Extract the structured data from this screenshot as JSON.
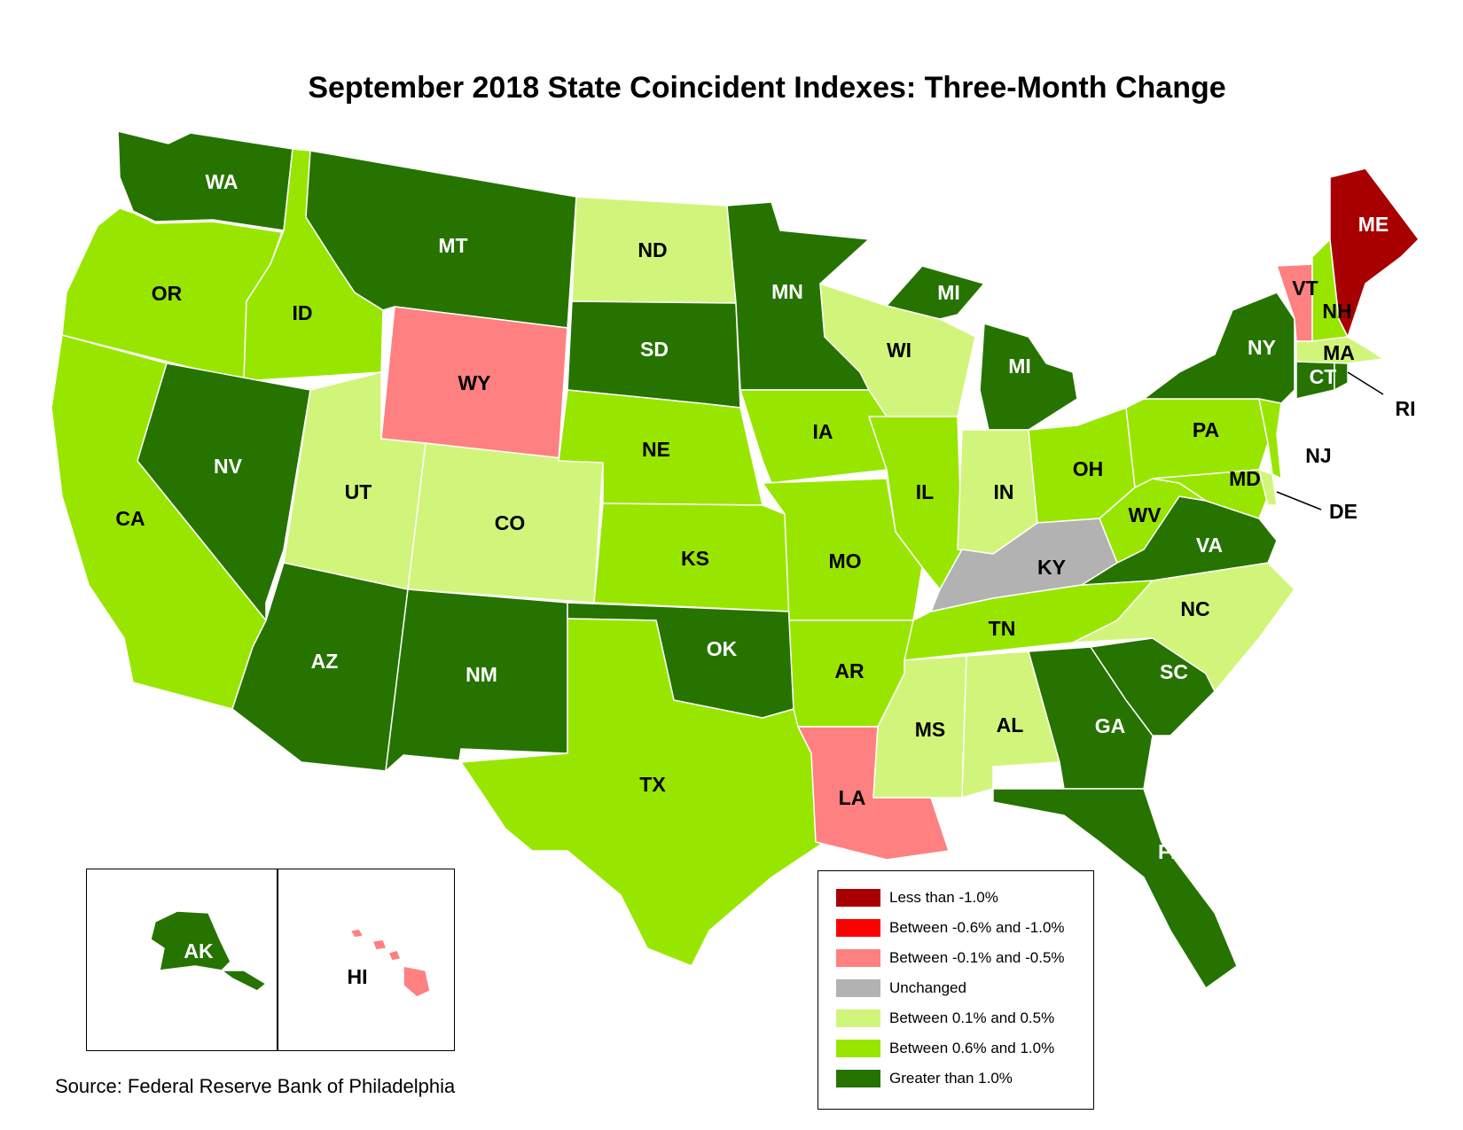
{
  "title": "September 2018 State Coincident Indexes: Three-Month Change",
  "source": "Source: Federal Reserve Bank of Philadelphia",
  "colors": {
    "c1": "#a80000",
    "c2": "#ff0000",
    "c3": "#ff8080",
    "c4": "#b2b2b2",
    "c5": "#d1f57a",
    "c6": "#98e600",
    "c7": "#267300"
  },
  "legend": [
    {
      "key": "c1",
      "label": "Less than -1.0%"
    },
    {
      "key": "c2",
      "label": "Between -0.6% and -1.0%"
    },
    {
      "key": "c3",
      "label": "Between -0.1% and -0.5%"
    },
    {
      "key": "c4",
      "label": "Unchanged"
    },
    {
      "key": "c5",
      "label": "Between 0.1% and 0.5%"
    },
    {
      "key": "c6",
      "label": "Between 0.6% and 1.0%"
    },
    {
      "key": "c7",
      "label": "Greater than 1.0%"
    }
  ],
  "states": {
    "WA": {
      "label": "WA",
      "cat": "c7"
    },
    "OR": {
      "label": "OR",
      "cat": "c6"
    },
    "CA": {
      "label": "CA",
      "cat": "c6"
    },
    "ID": {
      "label": "ID",
      "cat": "c6"
    },
    "NV": {
      "label": "NV",
      "cat": "c7"
    },
    "MT": {
      "label": "MT",
      "cat": "c7"
    },
    "WY": {
      "label": "WY",
      "cat": "c3"
    },
    "UT": {
      "label": "UT",
      "cat": "c5"
    },
    "AZ": {
      "label": "AZ",
      "cat": "c7"
    },
    "CO": {
      "label": "CO",
      "cat": "c5"
    },
    "NM": {
      "label": "NM",
      "cat": "c7"
    },
    "ND": {
      "label": "ND",
      "cat": "c5"
    },
    "SD": {
      "label": "SD",
      "cat": "c7"
    },
    "NE": {
      "label": "NE",
      "cat": "c6"
    },
    "KS": {
      "label": "KS",
      "cat": "c6"
    },
    "OK": {
      "label": "OK",
      "cat": "c7"
    },
    "TX": {
      "label": "TX",
      "cat": "c6"
    },
    "MN": {
      "label": "MN",
      "cat": "c7"
    },
    "IA": {
      "label": "IA",
      "cat": "c6"
    },
    "MO": {
      "label": "MO",
      "cat": "c6"
    },
    "AR": {
      "label": "AR",
      "cat": "c6"
    },
    "LA": {
      "label": "LA",
      "cat": "c3"
    },
    "WI": {
      "label": "WI",
      "cat": "c5"
    },
    "IL": {
      "label": "IL",
      "cat": "c6"
    },
    "MI": {
      "label": "MI",
      "cat": "c7"
    },
    "MI_UP": {
      "label": "MI",
      "cat": "c7"
    },
    "IN": {
      "label": "IN",
      "cat": "c5"
    },
    "OH": {
      "label": "OH",
      "cat": "c6"
    },
    "KY": {
      "label": "KY",
      "cat": "c4"
    },
    "TN": {
      "label": "TN",
      "cat": "c6"
    },
    "MS": {
      "label": "MS",
      "cat": "c5"
    },
    "AL": {
      "label": "AL",
      "cat": "c5"
    },
    "GA": {
      "label": "GA",
      "cat": "c7"
    },
    "FL": {
      "label": "FL",
      "cat": "c7"
    },
    "SC": {
      "label": "SC",
      "cat": "c7"
    },
    "NC": {
      "label": "NC",
      "cat": "c5"
    },
    "VA": {
      "label": "VA",
      "cat": "c7"
    },
    "WV": {
      "label": "WV",
      "cat": "c6"
    },
    "PA": {
      "label": "PA",
      "cat": "c6"
    },
    "NY": {
      "label": "NY",
      "cat": "c7"
    },
    "NJ": {
      "label": "NJ",
      "cat": "c6"
    },
    "DE": {
      "label": "DE",
      "cat": "c5"
    },
    "MD": {
      "label": "MD",
      "cat": "c6"
    },
    "CT": {
      "label": "CT",
      "cat": "c7"
    },
    "RI": {
      "label": "RI",
      "cat": "c7"
    },
    "MA": {
      "label": "MA",
      "cat": "c5"
    },
    "VT": {
      "label": "VT",
      "cat": "c3"
    },
    "NH": {
      "label": "NH",
      "cat": "c6"
    },
    "ME": {
      "label": "ME",
      "cat": "c1"
    },
    "AK": {
      "label": "AK",
      "cat": "c7"
    },
    "HI": {
      "label": "HI",
      "cat": "c3"
    }
  }
}
